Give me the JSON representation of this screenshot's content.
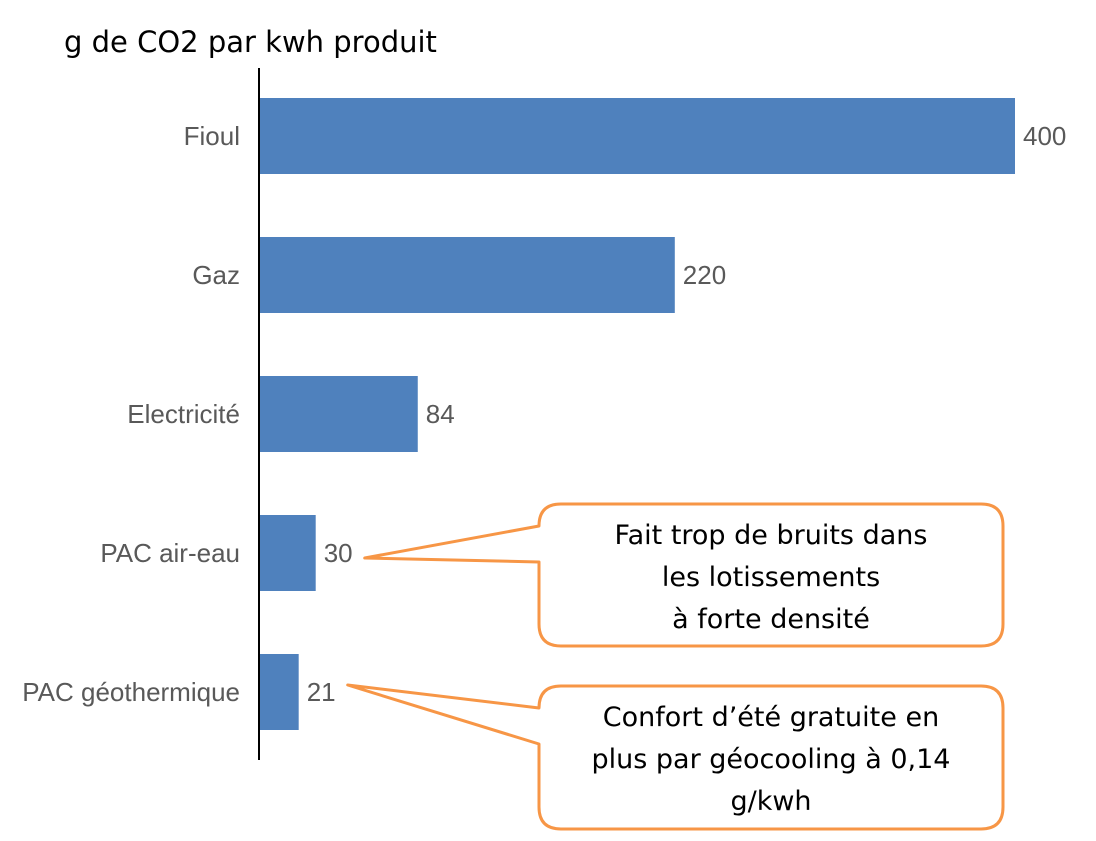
{
  "chart_data": {
    "type": "bar",
    "orientation": "horizontal",
    "title": "g de CO2 par kwh produit",
    "categories": [
      "Fioul",
      "Gaz",
      "Electricité",
      "PAC air-eau",
      "PAC géothermique"
    ],
    "values": [
      400,
      220,
      84,
      30,
      21
    ],
    "data_labels": [
      "400",
      "220",
      "84",
      "30",
      "21"
    ],
    "xlim": [
      0,
      400
    ],
    "grid": false,
    "legend": "none",
    "colors": {
      "bar": "#4f81bd",
      "axis": "#000000",
      "callout_border": "#f79646",
      "label_text": "#595959"
    },
    "annotations": [
      {
        "target_category": "PAC air-eau",
        "lines": [
          "Fait trop de bruits dans",
          "les lotissements",
          "à forte densité"
        ]
      },
      {
        "target_category": "PAC géothermique",
        "lines": [
          "Confort d’été gratuite en",
          "plus par géocooling à 0,14",
          "g/kwh"
        ]
      }
    ]
  }
}
